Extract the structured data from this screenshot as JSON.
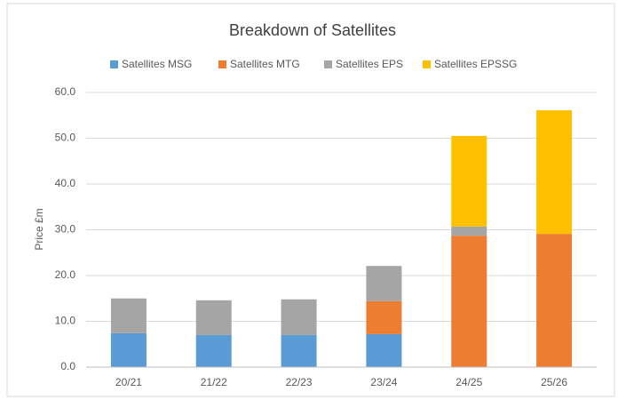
{
  "chart_data": {
    "type": "stacked_bar",
    "title": "Breakdown of Satellites",
    "y_label": "Price £m",
    "categories": [
      "20/21",
      "21/22",
      "22/23",
      "23/24",
      "24/25",
      "25/26"
    ],
    "series": [
      {
        "name": "Satellites MSG",
        "color": "#5b9bd5",
        "values": [
          7.4,
          7.0,
          7.0,
          7.2,
          0,
          0
        ]
      },
      {
        "name": "Satellites MTG",
        "color": "#ed7d31",
        "values": [
          0,
          0,
          0,
          7.2,
          28.7,
          29.1
        ]
      },
      {
        "name": "Satellites EPS",
        "color": "#a5a5a5",
        "values": [
          7.6,
          7.6,
          7.8,
          7.7,
          2.0,
          0
        ]
      },
      {
        "name": "Satellites EPSSG",
        "color": "#ffc000",
        "values": [
          0,
          0,
          0,
          0,
          19.8,
          27.0
        ]
      }
    ],
    "ylim": [
      0,
      60
    ],
    "yticks": [
      {
        "value": 0,
        "label": "0.0"
      },
      {
        "value": 10,
        "label": "10.0"
      },
      {
        "value": 20,
        "label": "20.0"
      },
      {
        "value": 30,
        "label": "30.0"
      },
      {
        "value": 40,
        "label": "40.0"
      },
      {
        "value": 50,
        "label": "50.0"
      },
      {
        "value": 60,
        "label": "60.0"
      }
    ],
    "grid": true,
    "legend": "top"
  }
}
